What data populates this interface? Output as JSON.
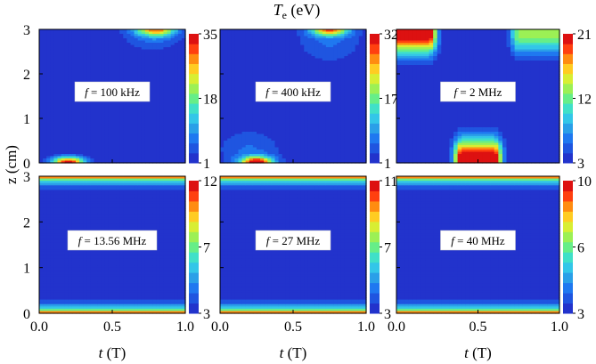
{
  "figure": {
    "title_symbol": "T",
    "title_subscript": "e",
    "title_unit": " (eV)",
    "ylabel": "z (cm)",
    "xlabel_symbol": "t",
    "xlabel_unit": " (T)"
  },
  "colormap": [
    "#2233cc",
    "#1f55e0",
    "#1f78f0",
    "#2a9fe8",
    "#33c6e8",
    "#40e0c8",
    "#66ee88",
    "#9cf055",
    "#d8ee33",
    "#ffcc22",
    "#ff8c11",
    "#ff4010",
    "#dd1111"
  ],
  "chart_data": [
    {
      "type": "heatmap",
      "label": "f = 100 kHz",
      "f_value": "100 kHz",
      "xlim": [
        0,
        1
      ],
      "ylim": [
        0,
        3
      ],
      "xticks": [
        "0.0",
        "0.5",
        "1.0"
      ],
      "yticks": [
        "0",
        "1",
        "2",
        "3"
      ],
      "colorbar": {
        "min": 1,
        "mid": 18,
        "max": 35,
        "ticks": [
          "1",
          "18",
          "35"
        ]
      },
      "hotspots": [
        {
          "x": 0.2,
          "z": 0.0,
          "peak": 35,
          "sx": 0.11,
          "sz": 0.14
        },
        {
          "x": 0.8,
          "z": 3.0,
          "peak": 24,
          "sx": 0.13,
          "sz": 0.14
        },
        {
          "x": 0.78,
          "z": 2.9,
          "peak": 8,
          "sx": 0.2,
          "sz": 0.35
        }
      ]
    },
    {
      "type": "heatmap",
      "label": "f = 400 kHz",
      "f_value": "400 kHz",
      "xlim": [
        0,
        1
      ],
      "ylim": [
        0,
        3
      ],
      "xticks": [
        "0.0",
        "0.5",
        "1.0"
      ],
      "yticks": [
        "0",
        "1",
        "2",
        "3"
      ],
      "colorbar": {
        "min": 1,
        "mid": 17,
        "max": 32,
        "ticks": [
          "1",
          "17",
          "32"
        ]
      },
      "hotspots": [
        {
          "x": 0.25,
          "z": 0.0,
          "peak": 32,
          "sx": 0.11,
          "sz": 0.14
        },
        {
          "x": 0.75,
          "z": 3.0,
          "peak": 26,
          "sx": 0.13,
          "sz": 0.14
        },
        {
          "x": 0.2,
          "z": 0.3,
          "peak": 6,
          "sx": 0.22,
          "sz": 0.45
        },
        {
          "x": 0.75,
          "z": 2.7,
          "peak": 6,
          "sx": 0.22,
          "sz": 0.45
        }
      ]
    },
    {
      "type": "heatmap",
      "label": "f = 2 MHz",
      "f_value": "2 MHz",
      "xlim": [
        0,
        1
      ],
      "ylim": [
        0,
        3
      ],
      "xticks": [
        "0.0",
        "0.5",
        "1.0"
      ],
      "yticks": [
        "0",
        "1",
        "2",
        "3"
      ],
      "colorbar": {
        "min": 3,
        "mid": 12,
        "max": 21,
        "ticks": [
          "3",
          "12",
          "21"
        ]
      },
      "plateaus": [
        {
          "x0": 0.0,
          "x1": 0.2,
          "z": 3.0,
          "peak": 21,
          "half_width_z": 0.12,
          "decay_z": 0.42
        },
        {
          "x0": 0.75,
          "x1": 1.0,
          "z": 3.0,
          "peak": 13,
          "half_width_z": 0.12,
          "decay_z": 0.42
        },
        {
          "x0": 0.4,
          "x1": 0.6,
          "z": 0.0,
          "peak": 21,
          "half_width_z": 0.12,
          "decay_z": 0.42
        }
      ]
    },
    {
      "type": "heatmap",
      "label": "f = 13.56 MHz",
      "f_value": "13.56 MHz",
      "xlim": [
        0,
        1
      ],
      "ylim": [
        0,
        3
      ],
      "xticks": [
        "0.0",
        "0.5",
        "1.0"
      ],
      "yticks": [
        "0",
        "1",
        "2",
        "3"
      ],
      "colorbar": {
        "min": 3,
        "mid": 7,
        "max": 12,
        "ticks": [
          "3",
          "7",
          "12"
        ]
      },
      "edge_profile": {
        "peak": 12,
        "decay_z": 0.12,
        "base": 3
      }
    },
    {
      "type": "heatmap",
      "label": "f = 27 MHz",
      "f_value": "27 MHz",
      "xlim": [
        0,
        1
      ],
      "ylim": [
        0,
        3
      ],
      "xticks": [
        "0.0",
        "0.5",
        "1.0"
      ],
      "yticks": [
        "0",
        "1",
        "2",
        "3"
      ],
      "colorbar": {
        "min": 3,
        "mid": 7,
        "max": 11,
        "ticks": [
          "3",
          "7",
          "11"
        ]
      },
      "edge_profile": {
        "peak": 11,
        "decay_z": 0.12,
        "base": 3
      }
    },
    {
      "type": "heatmap",
      "label": "f = 40 MHz",
      "f_value": "40 MHz",
      "xlim": [
        0,
        1
      ],
      "ylim": [
        0,
        3
      ],
      "xticks": [
        "0.0",
        "0.5",
        "1.0"
      ],
      "yticks": [
        "0",
        "1",
        "2",
        "3"
      ],
      "colorbar": {
        "min": 3,
        "mid": 6,
        "max": 10,
        "ticks": [
          "3",
          "6",
          "10"
        ]
      },
      "edge_profile": {
        "peak": 10,
        "decay_z": 0.12,
        "base": 3
      }
    }
  ]
}
